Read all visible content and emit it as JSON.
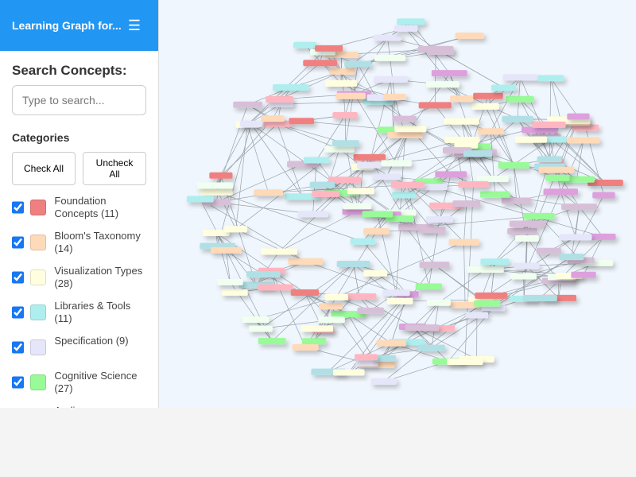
{
  "header": {
    "title": "Learning Graph for...",
    "menu_icon": "hamburger-icon"
  },
  "search": {
    "heading": "Search Concepts:",
    "placeholder": "Type to search..."
  },
  "categories": {
    "heading": "Categories",
    "check_all": "Check All",
    "uncheck_all": "Uncheck All",
    "items": [
      {
        "label": "Foundation Concepts (11)",
        "color": "#F08080",
        "checked": true
      },
      {
        "label": "Bloom's Taxonomy (14)",
        "color": "#FFDAB9",
        "checked": true
      },
      {
        "label": "Visualization Types (28)",
        "color": "#FFFFE0",
        "checked": true
      },
      {
        "label": "Libraries & Tools (11)",
        "color": "#AFEEEE",
        "checked": true
      },
      {
        "label": "Specification (9)",
        "color": "#E6E6FA",
        "checked": true
      },
      {
        "label": "Cognitive Science (27)",
        "color": "#98FB98",
        "checked": true
      },
      {
        "label": "Audience",
        "color": "#FFB6C1",
        "checked": true
      }
    ]
  },
  "graph": {
    "extra_colors": [
      "#D8BFD8",
      "#DDA0DD",
      "#F0FFF0",
      "#B0E0E6"
    ]
  }
}
